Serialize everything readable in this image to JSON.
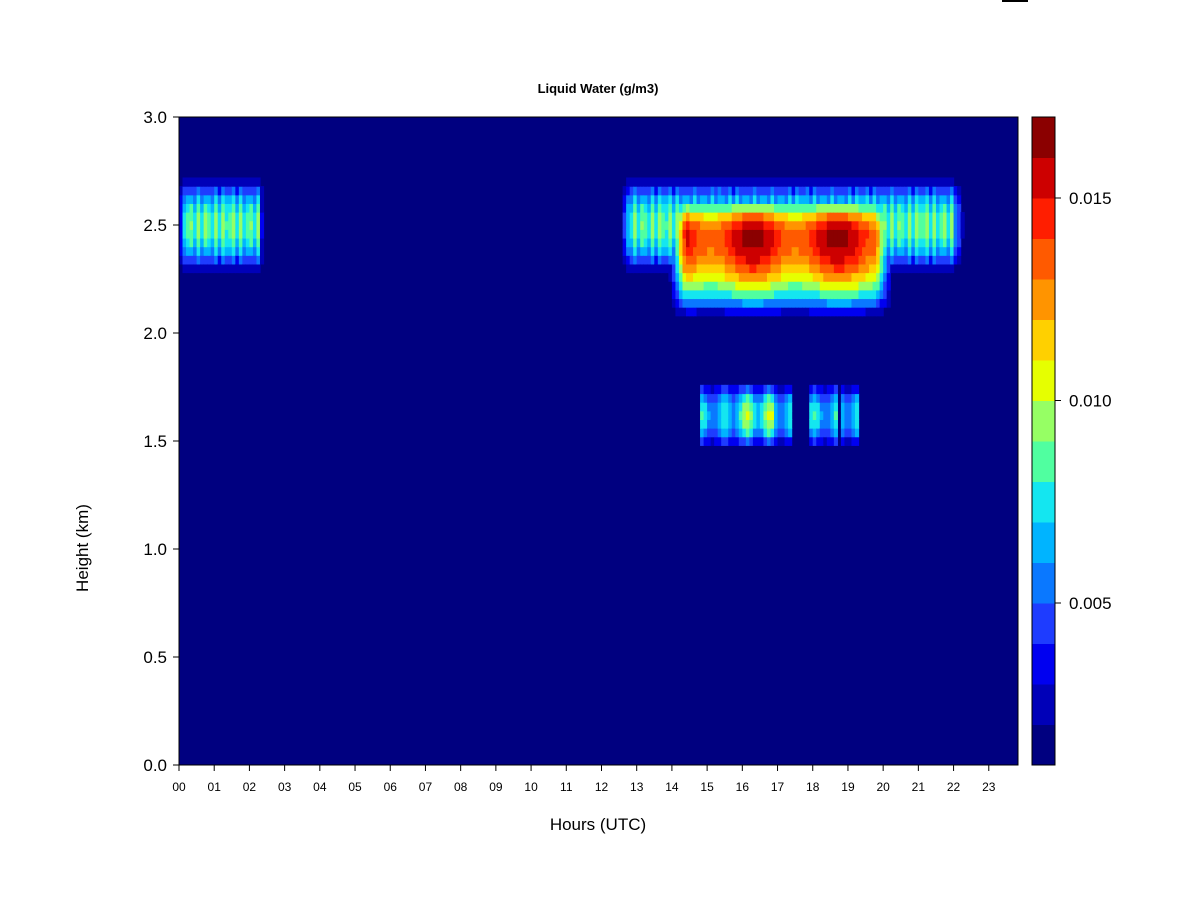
{
  "chart_data": {
    "type": "heatmap",
    "title": "Liquid Water (g/m3)",
    "xlabel": "Hours (UTC)",
    "ylabel": "Height (km)",
    "xlim": [
      0,
      23.83
    ],
    "ylim": [
      0.0,
      3.0
    ],
    "x_ticks": [
      "00",
      "01",
      "02",
      "03",
      "04",
      "05",
      "06",
      "07",
      "08",
      "09",
      "10",
      "11",
      "12",
      "13",
      "14",
      "15",
      "16",
      "17",
      "18",
      "19",
      "20",
      "21",
      "22",
      "23"
    ],
    "y_ticks": [
      "0.0",
      "0.5",
      "1.0",
      "1.5",
      "2.0",
      "2.5",
      "3.0"
    ],
    "colorbar": {
      "range": [
        0.001,
        0.017
      ],
      "tick_values": [
        0.005,
        0.01,
        0.015
      ],
      "tick_labels": [
        "0.005",
        "0.010",
        "0.015"
      ],
      "colors": [
        "#000080",
        "#0000b8",
        "#0000f0",
        "#1e3cff",
        "#0a78ff",
        "#00b4ff",
        "#14e6f0",
        "#50ffa0",
        "#96ff64",
        "#e6ff00",
        "#ffd000",
        "#ff9400",
        "#ff5a00",
        "#ff1e00",
        "#cd0000",
        "#8b0000"
      ]
    },
    "background_value": 0.001,
    "features": [
      {
        "name": "upper cloud layer (00-02 UTC)",
        "x_range": [
          0.0,
          2.4
        ],
        "height_center": 2.5,
        "height_halfwidth": 0.22,
        "peak_value": 0.01
      },
      {
        "name": "upper cloud layer (12.5-22.3 UTC)",
        "x_range": [
          12.5,
          22.3
        ],
        "height_center": 2.5,
        "height_halfwidth": 0.22,
        "peak_value": 0.01
      },
      {
        "name": "upper cloud core (14-20.3 UTC)",
        "x_range": [
          13.9,
          20.3
        ],
        "height_center": 2.45,
        "height_halfwidth": 0.4,
        "peak_value": 0.0165
      },
      {
        "name": "lower cloud patch (14.8-19.3 UTC)",
        "x_range": [
          14.8,
          19.3
        ],
        "height_center": 1.62,
        "height_halfwidth": 0.16,
        "peak_value": 0.0105
      }
    ]
  }
}
